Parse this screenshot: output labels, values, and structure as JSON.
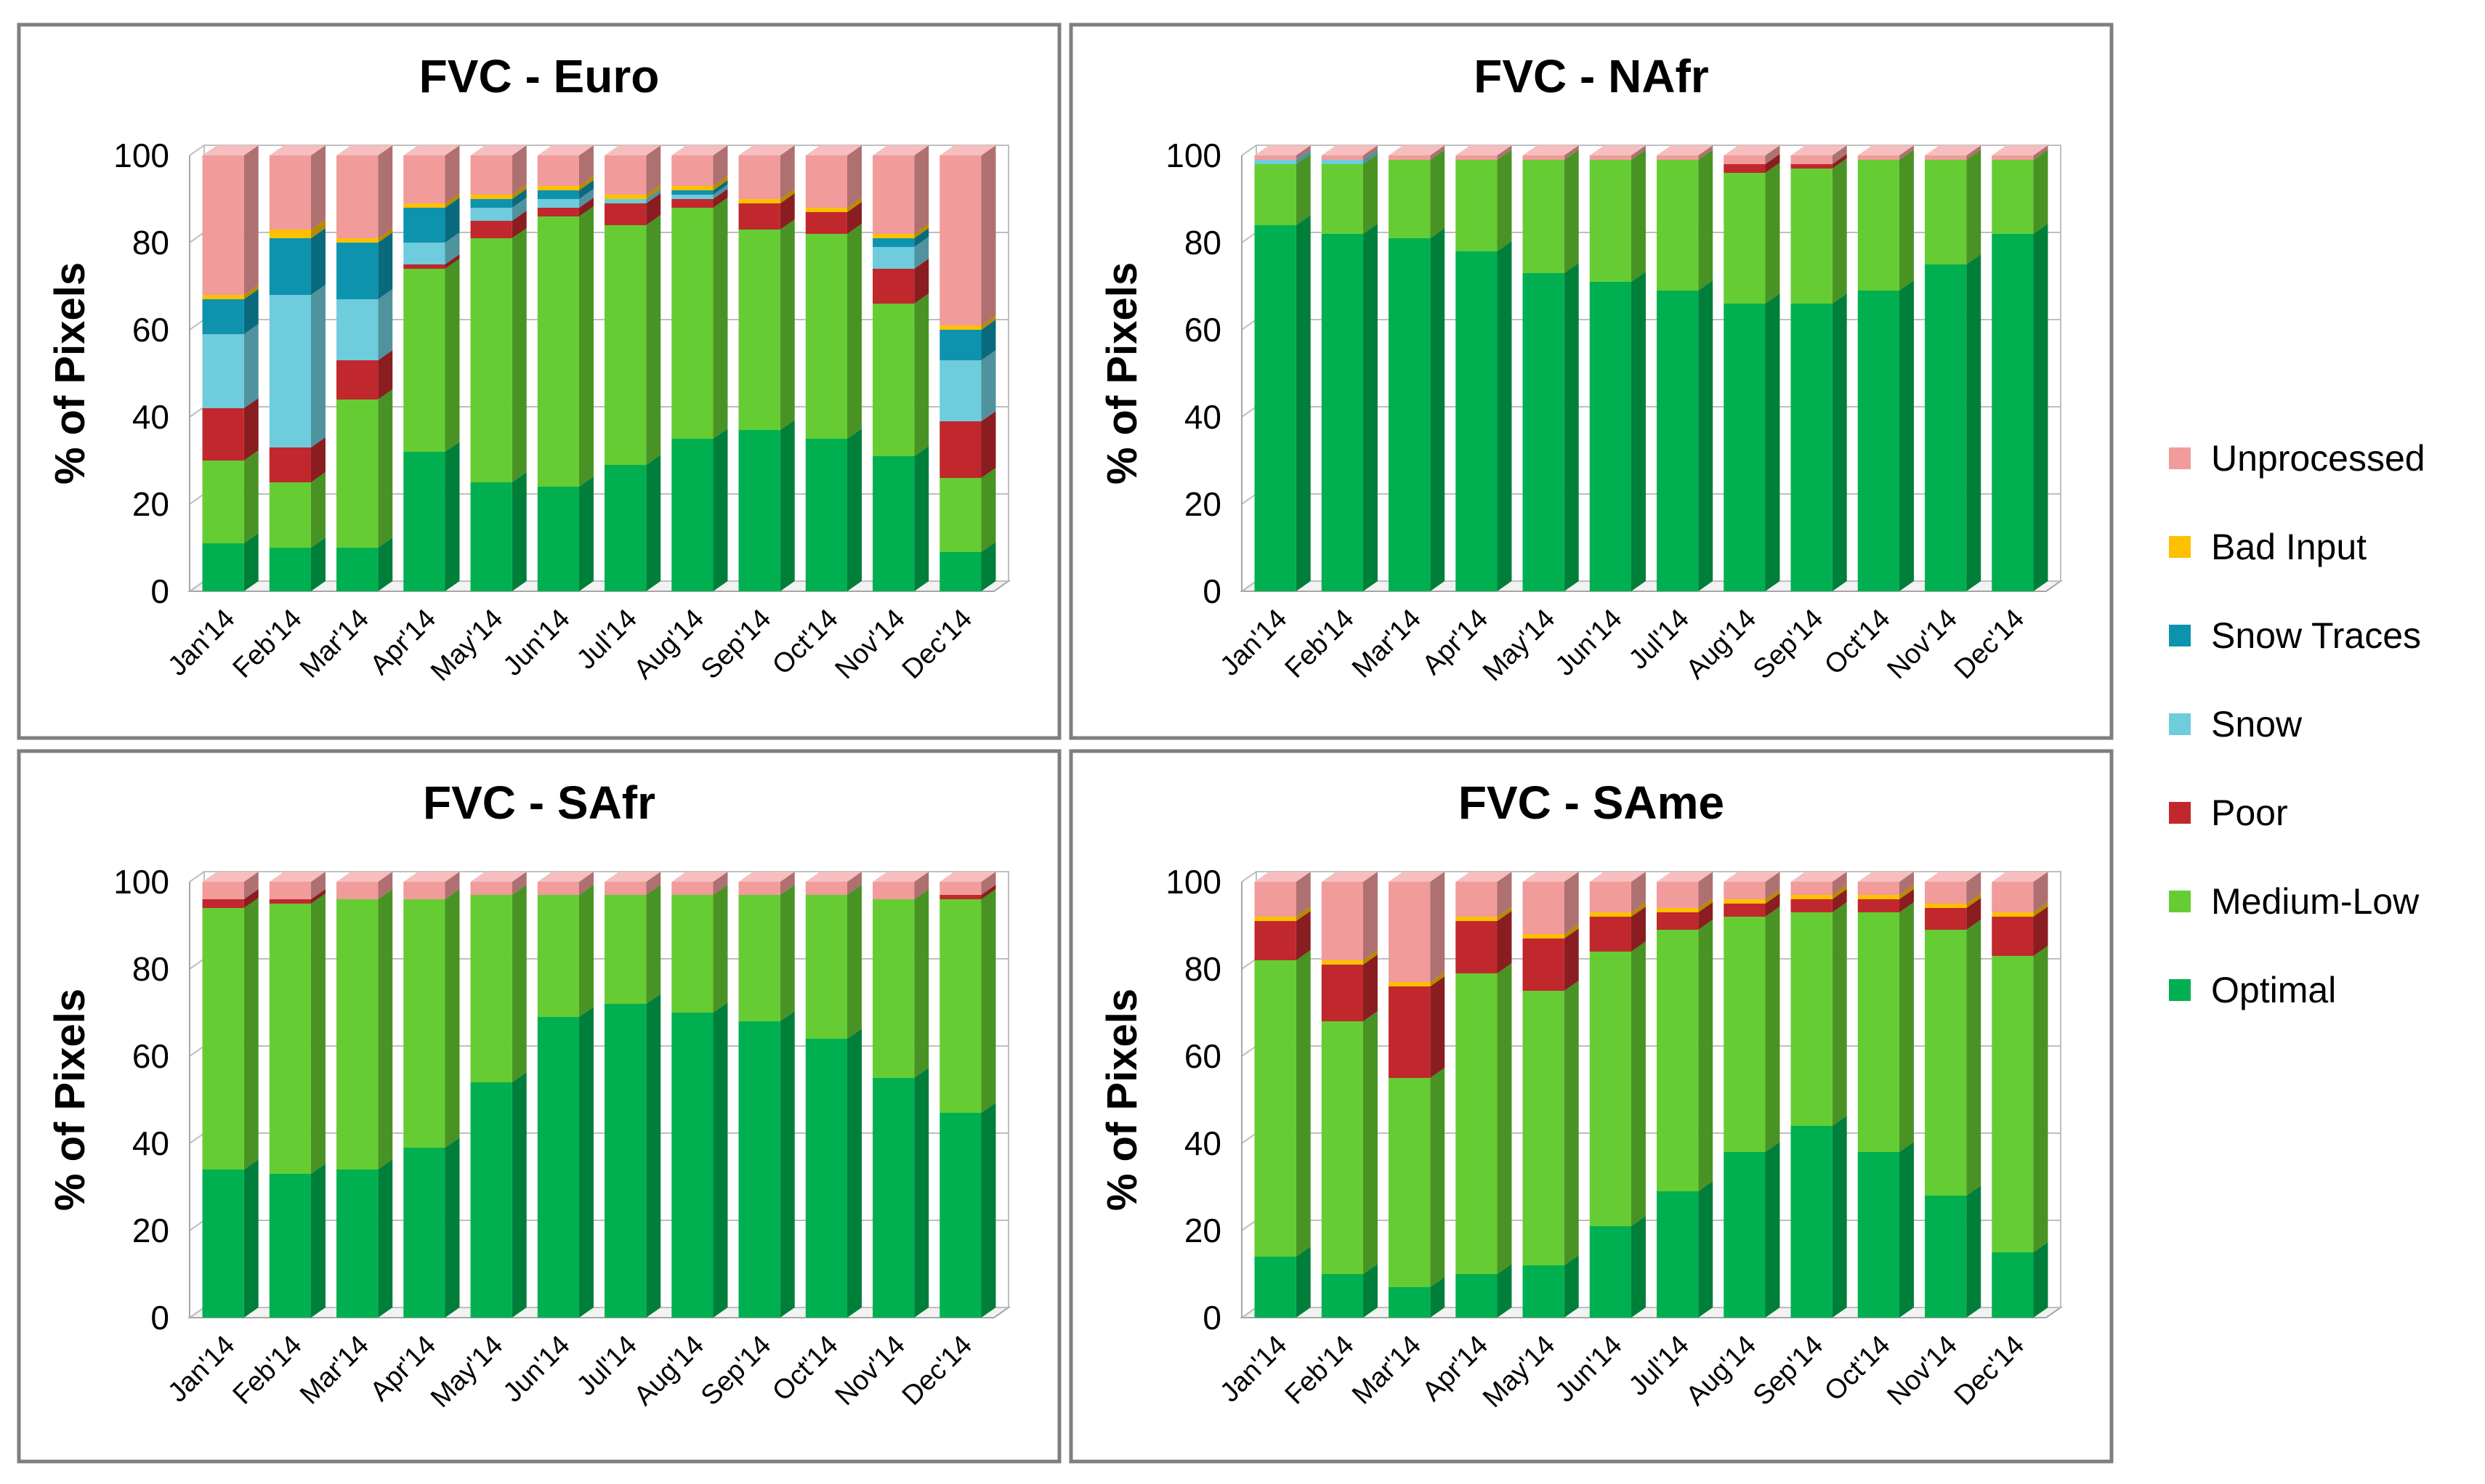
{
  "series": [
    {
      "key": "optimal",
      "name": "Optimal",
      "color": "#00B050"
    },
    {
      "key": "medium_low",
      "name": "Medium-Low",
      "color": "#66CC33"
    },
    {
      "key": "poor",
      "name": "Poor",
      "color": "#C0282D"
    },
    {
      "key": "snow",
      "name": "Snow",
      "color": "#6ECCDC"
    },
    {
      "key": "snow_traces",
      "name": "Snow Traces",
      "color": "#0E93AE"
    },
    {
      "key": "bad_input",
      "name": "Bad Input",
      "color": "#FFC000"
    },
    {
      "key": "unprocessed",
      "name": "Unprocessed",
      "color": "#F19B9B"
    }
  ],
  "legend_order": [
    "unprocessed",
    "bad_input",
    "snow_traces",
    "snow",
    "poor",
    "medium_low",
    "optimal"
  ],
  "chart_data": [
    {
      "type": "bar",
      "stacked": true,
      "title": "FVC - Euro",
      "ylabel": "% of Pixels",
      "xlabel": "",
      "ylim": [
        0,
        100
      ],
      "yticks": [
        0,
        20,
        40,
        60,
        80,
        100
      ],
      "categories": [
        "Jan'14",
        "Feb'14",
        "Mar'14",
        "Apr'14",
        "May'14",
        "Jun'14",
        "Jul'14",
        "Aug'14",
        "Sep'14",
        "Oct'14",
        "Nov'14",
        "Dec'14"
      ],
      "series": [
        {
          "key": "optimal",
          "values": [
            11,
            10,
            10,
            32,
            25,
            24,
            29,
            35,
            37,
            35,
            31,
            9
          ]
        },
        {
          "key": "medium_low",
          "values": [
            19,
            15,
            34,
            42,
            56,
            62,
            55,
            53,
            46,
            47,
            35,
            17
          ]
        },
        {
          "key": "poor",
          "values": [
            12,
            8,
            9,
            1,
            4,
            2,
            5,
            2,
            6,
            5,
            8,
            13
          ]
        },
        {
          "key": "snow",
          "values": [
            17,
            35,
            14,
            5,
            3,
            2,
            1,
            1,
            0,
            0,
            5,
            14
          ]
        },
        {
          "key": "snow_traces",
          "values": [
            8,
            13,
            13,
            8,
            2,
            2,
            0,
            1,
            0,
            0,
            2,
            7
          ]
        },
        {
          "key": "bad_input",
          "values": [
            1,
            2,
            1,
            1,
            1,
            1,
            1,
            1,
            1,
            1,
            1,
            1
          ]
        },
        {
          "key": "unprocessed",
          "values": [
            32,
            17,
            19,
            11,
            9,
            7,
            9,
            7,
            10,
            12,
            18,
            39
          ]
        }
      ]
    },
    {
      "type": "bar",
      "stacked": true,
      "title": "FVC - NAfr",
      "ylabel": "% of Pixels",
      "xlabel": "",
      "ylim": [
        0,
        100
      ],
      "yticks": [
        0,
        20,
        40,
        60,
        80,
        100
      ],
      "categories": [
        "Jan'14",
        "Feb'14",
        "Mar'14",
        "Apr'14",
        "May'14",
        "Jun'14",
        "Jul'14",
        "Aug'14",
        "Sep'14",
        "Oct'14",
        "Nov'14",
        "Dec'14"
      ],
      "series": [
        {
          "key": "optimal",
          "values": [
            84,
            82,
            81,
            78,
            73,
            71,
            69,
            66,
            66,
            69,
            75,
            82
          ]
        },
        {
          "key": "medium_low",
          "values": [
            14,
            16,
            18,
            21,
            26,
            28,
            30,
            30,
            31,
            30,
            24,
            17
          ]
        },
        {
          "key": "poor",
          "values": [
            0,
            0,
            0,
            0,
            0,
            0,
            0,
            2,
            1,
            0,
            0,
            0
          ]
        },
        {
          "key": "snow",
          "values": [
            1,
            1,
            0,
            0,
            0,
            0,
            0,
            0,
            0,
            0,
            0,
            0
          ]
        },
        {
          "key": "snow_traces",
          "values": [
            0,
            0,
            0,
            0,
            0,
            0,
            0,
            0,
            0,
            0,
            0,
            0
          ]
        },
        {
          "key": "bad_input",
          "values": [
            0,
            0,
            0,
            0,
            0,
            0,
            0,
            0,
            0,
            0,
            0,
            0
          ]
        },
        {
          "key": "unprocessed",
          "values": [
            1,
            1,
            1,
            1,
            1,
            1,
            1,
            2,
            2,
            1,
            1,
            1
          ]
        }
      ]
    },
    {
      "type": "bar",
      "stacked": true,
      "title": "FVC - SAfr",
      "ylabel": "% of Pixels",
      "xlabel": "",
      "ylim": [
        0,
        100
      ],
      "yticks": [
        0,
        20,
        40,
        60,
        80,
        100
      ],
      "categories": [
        "Jan'14",
        "Feb'14",
        "Mar'14",
        "Apr'14",
        "May'14",
        "Jun'14",
        "Jul'14",
        "Aug'14",
        "Sep'14",
        "Oct'14",
        "Nov'14",
        "Dec'14"
      ],
      "series": [
        {
          "key": "optimal",
          "values": [
            34,
            33,
            34,
            39,
            54,
            69,
            72,
            70,
            68,
            64,
            55,
            47
          ]
        },
        {
          "key": "medium_low",
          "values": [
            60,
            62,
            62,
            57,
            43,
            28,
            25,
            27,
            29,
            33,
            41,
            49
          ]
        },
        {
          "key": "poor",
          "values": [
            2,
            1,
            0,
            0,
            0,
            0,
            0,
            0,
            0,
            0,
            0,
            1
          ]
        },
        {
          "key": "snow",
          "values": [
            0,
            0,
            0,
            0,
            0,
            0,
            0,
            0,
            0,
            0,
            0,
            0
          ]
        },
        {
          "key": "snow_traces",
          "values": [
            0,
            0,
            0,
            0,
            0,
            0,
            0,
            0,
            0,
            0,
            0,
            0
          ]
        },
        {
          "key": "bad_input",
          "values": [
            0,
            0,
            0,
            0,
            0,
            0,
            0,
            0,
            0,
            0,
            0,
            0
          ]
        },
        {
          "key": "unprocessed",
          "values": [
            4,
            4,
            4,
            4,
            3,
            3,
            3,
            3,
            3,
            3,
            4,
            3
          ]
        }
      ]
    },
    {
      "type": "bar",
      "stacked": true,
      "title": "FVC - SAme",
      "ylabel": "% of Pixels",
      "xlabel": "",
      "ylim": [
        0,
        100
      ],
      "yticks": [
        0,
        20,
        40,
        60,
        80,
        100
      ],
      "categories": [
        "Jan'14",
        "Feb'14",
        "Mar'14",
        "Apr'14",
        "May'14",
        "Jun'14",
        "Jul'14",
        "Aug'14",
        "Sep'14",
        "Oct'14",
        "Nov'14",
        "Dec'14"
      ],
      "series": [
        {
          "key": "optimal",
          "values": [
            14,
            10,
            7,
            10,
            12,
            21,
            29,
            38,
            44,
            38,
            28,
            15
          ]
        },
        {
          "key": "medium_low",
          "values": [
            68,
            58,
            48,
            69,
            63,
            63,
            60,
            54,
            49,
            55,
            61,
            68
          ]
        },
        {
          "key": "poor",
          "values": [
            9,
            13,
            21,
            12,
            12,
            8,
            4,
            3,
            3,
            3,
            5,
            9
          ]
        },
        {
          "key": "snow",
          "values": [
            0,
            0,
            0,
            0,
            0,
            0,
            0,
            0,
            0,
            0,
            0,
            0
          ]
        },
        {
          "key": "snow_traces",
          "values": [
            0,
            0,
            0,
            0,
            0,
            0,
            0,
            0,
            0,
            0,
            0,
            0
          ]
        },
        {
          "key": "bad_input",
          "values": [
            1,
            1,
            1,
            1,
            1,
            1,
            1,
            1,
            1,
            1,
            1,
            1
          ]
        },
        {
          "key": "unprocessed",
          "values": [
            8,
            18,
            23,
            8,
            12,
            7,
            6,
            4,
            3,
            3,
            5,
            7
          ]
        }
      ]
    }
  ]
}
